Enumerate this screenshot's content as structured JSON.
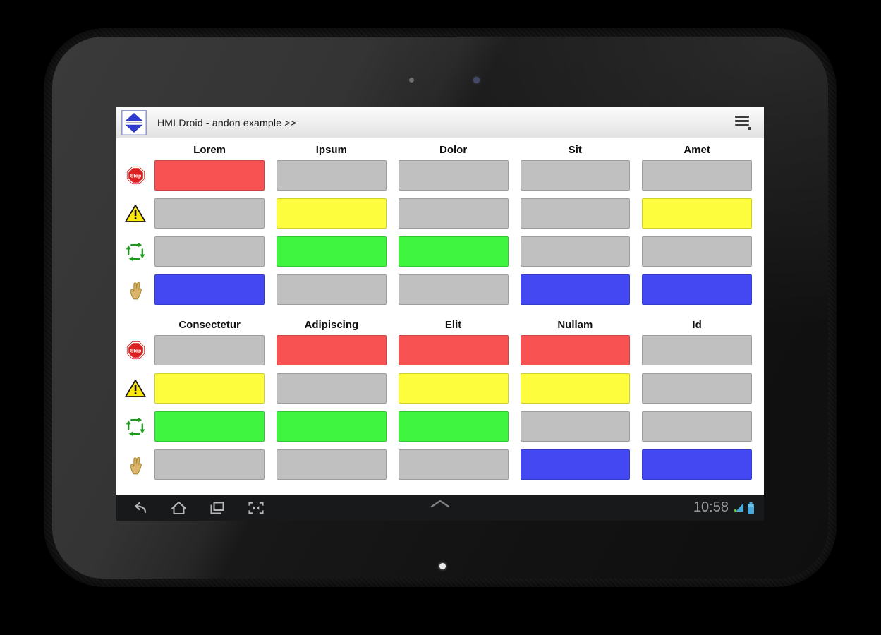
{
  "titlebar": {
    "title": "HMI Droid - andon example >>",
    "logo_icon": "hmi-droid-logo",
    "menu_icon": "overflow-menu-icon"
  },
  "navbar": {
    "time": "10:58",
    "icons": [
      "back-icon",
      "home-icon",
      "recents-icon",
      "screenshot-icon",
      "chevron-up-icon",
      "wifi-icon",
      "battery-icon"
    ]
  },
  "andon_board": {
    "states": {
      "red": "#f85252",
      "yellow": "#fdfd3e",
      "green": "#3ff53f",
      "blue": "#4348f2",
      "off": "#c0c0c0"
    },
    "row_icons": [
      "stop-icon",
      "warning-icon",
      "cycle-icon",
      "hand-icon"
    ],
    "sections": [
      {
        "columns": [
          "Lorem",
          "Ipsum",
          "Dolor",
          "Sit",
          "Amet"
        ],
        "rows": [
          {
            "icon": "stop-icon",
            "cells": [
              "red",
              "off",
              "off",
              "off",
              "off"
            ]
          },
          {
            "icon": "warning-icon",
            "cells": [
              "off",
              "yellow",
              "off",
              "off",
              "yellow"
            ]
          },
          {
            "icon": "cycle-icon",
            "cells": [
              "off",
              "green",
              "green",
              "off",
              "off"
            ]
          },
          {
            "icon": "hand-icon",
            "cells": [
              "blue",
              "off",
              "off",
              "blue",
              "blue"
            ]
          }
        ]
      },
      {
        "columns": [
          "Consectetur",
          "Adipiscing",
          "Elit",
          "Nullam",
          "Id"
        ],
        "rows": [
          {
            "icon": "stop-icon",
            "cells": [
              "off",
              "red",
              "red",
              "red",
              "off"
            ]
          },
          {
            "icon": "warning-icon",
            "cells": [
              "yellow",
              "off",
              "yellow",
              "yellow",
              "off"
            ]
          },
          {
            "icon": "cycle-icon",
            "cells": [
              "green",
              "green",
              "green",
              "off",
              "off"
            ]
          },
          {
            "icon": "hand-icon",
            "cells": [
              "off",
              "off",
              "off",
              "blue",
              "blue"
            ]
          }
        ]
      }
    ]
  }
}
